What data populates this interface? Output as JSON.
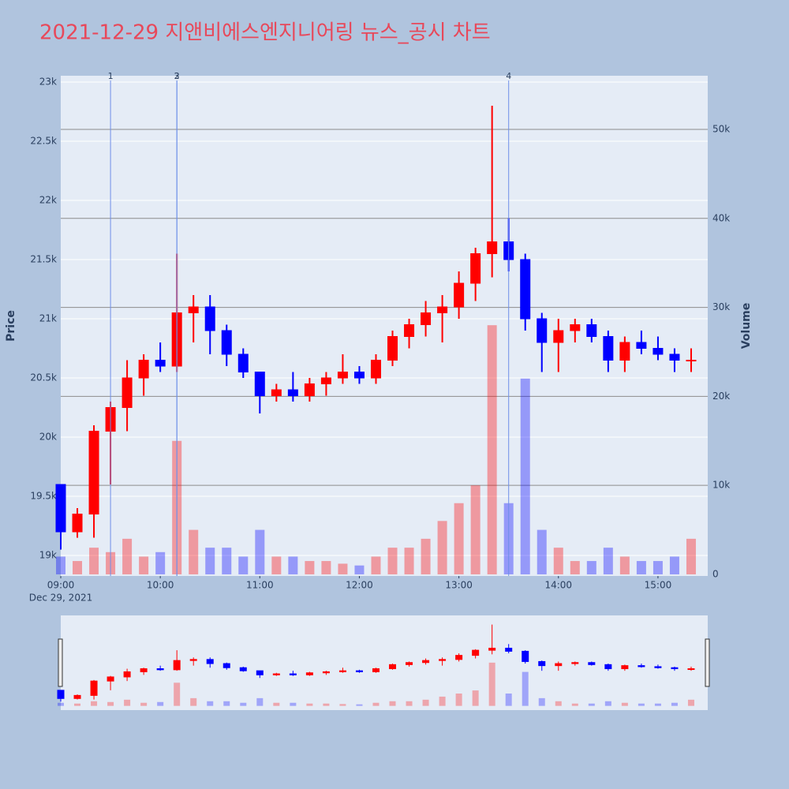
{
  "chart_data": {
    "type": "candlestick",
    "title": "2021-12-29 지앤비에스엔지니어링 뉴스_공시 차트",
    "y_axis_title": "Price",
    "y2_axis_title": "Volume",
    "x": [
      "09:00",
      "09:10",
      "09:20",
      "09:30",
      "09:40",
      "09:50",
      "10:00",
      "10:10",
      "10:20",
      "10:30",
      "10:40",
      "10:50",
      "11:00",
      "11:10",
      "11:20",
      "11:30",
      "11:40",
      "11:50",
      "12:00",
      "12:10",
      "12:20",
      "12:30",
      "12:40",
      "12:50",
      "13:00",
      "13:10",
      "13:20",
      "13:30",
      "13:40",
      "13:50",
      "14:00",
      "14:10",
      "14:20",
      "14:30",
      "14:40",
      "14:50",
      "15:00",
      "15:10",
      "15:20"
    ],
    "open": [
      19600,
      19200,
      19350,
      20050,
      20250,
      20500,
      20650,
      20600,
      21050,
      21100,
      20900,
      20700,
      20550,
      20350,
      20400,
      20350,
      20450,
      20500,
      20550,
      20500,
      20650,
      20850,
      20950,
      21050,
      21100,
      21300,
      21550,
      21650,
      21500,
      21000,
      20800,
      20900,
      20950,
      20850,
      20650,
      20800,
      20750,
      20700,
      20650
    ],
    "high": [
      19600,
      19400,
      20100,
      20300,
      20650,
      20700,
      20800,
      21550,
      21200,
      21200,
      20950,
      20750,
      20550,
      20450,
      20550,
      20500,
      20550,
      20700,
      20600,
      20700,
      20900,
      21000,
      21150,
      21200,
      21400,
      21600,
      22800,
      21850,
      21550,
      21050,
      21000,
      21000,
      21000,
      20900,
      20850,
      20900,
      20850,
      20750,
      20750
    ],
    "low": [
      19050,
      19150,
      19150,
      19600,
      20050,
      20350,
      20550,
      20550,
      20800,
      20700,
      20600,
      20500,
      20200,
      20300,
      20300,
      20300,
      20350,
      20450,
      20450,
      20450,
      20600,
      20750,
      20850,
      20800,
      21000,
      21150,
      21350,
      21400,
      20900,
      20550,
      20550,
      20800,
      20800,
      20550,
      20550,
      20700,
      20650,
      20550,
      20550
    ],
    "close": [
      19200,
      19350,
      20050,
      20250,
      20500,
      20650,
      20600,
      21050,
      21100,
      20900,
      20700,
      20550,
      20350,
      20400,
      20350,
      20450,
      20500,
      20550,
      20500,
      20650,
      20850,
      20950,
      21050,
      21100,
      21300,
      21550,
      21650,
      21500,
      21000,
      20800,
      20900,
      20950,
      20850,
      20650,
      20800,
      20750,
      20700,
      20650,
      20650
    ],
    "volume": [
      2000,
      1500,
      3000,
      2500,
      4000,
      2000,
      2500,
      15000,
      5000,
      3000,
      3000,
      2000,
      5000,
      2000,
      2000,
      1500,
      1500,
      1200,
      1000,
      2000,
      3000,
      3000,
      4000,
      6000,
      8000,
      10000,
      28000,
      8000,
      22000,
      5000,
      3000,
      1500,
      1500,
      3000,
      2000,
      1500,
      1500,
      2000,
      4000
    ],
    "increasing_color": "#ff0000",
    "decreasing_color": "#0000ff",
    "xlim": [
      "09:00",
      "15:30"
    ],
    "xticks": [
      "09:00",
      "10:00",
      "11:00",
      "12:00",
      "13:00",
      "14:00",
      "15:00"
    ],
    "xtick_sublabel": "Dec 29, 2021",
    "ylim": [
      18827,
      23053
    ],
    "yticks": [
      {
        "value": 19000,
        "label": "19k"
      },
      {
        "value": 19500,
        "label": "19.5k"
      },
      {
        "value": 20000,
        "label": "20k"
      },
      {
        "value": 20500,
        "label": "20.5k"
      },
      {
        "value": 21000,
        "label": "21k"
      },
      {
        "value": 21500,
        "label": "21.5k"
      },
      {
        "value": 22000,
        "label": "22k"
      },
      {
        "value": 22500,
        "label": "22.5k"
      },
      {
        "value": 23000,
        "label": "23k"
      }
    ],
    "y2lim": [
      -180,
      56030
    ],
    "y2ticks": [
      0,
      {
        "value": 10000,
        "label": "10k"
      },
      {
        "value": 20000,
        "label": "20k"
      },
      {
        "value": 30000,
        "label": "30k"
      },
      {
        "value": 40000,
        "label": "40k"
      },
      {
        "value": 50000,
        "label": "50k"
      }
    ],
    "grid": true,
    "events": [
      {
        "x": "09:30",
        "label": "1"
      },
      {
        "x": "10:10",
        "label": "2"
      },
      {
        "x": "10:10",
        "label": "3"
      },
      {
        "x": "13:30",
        "label": "4"
      }
    ],
    "range_slider": true
  }
}
